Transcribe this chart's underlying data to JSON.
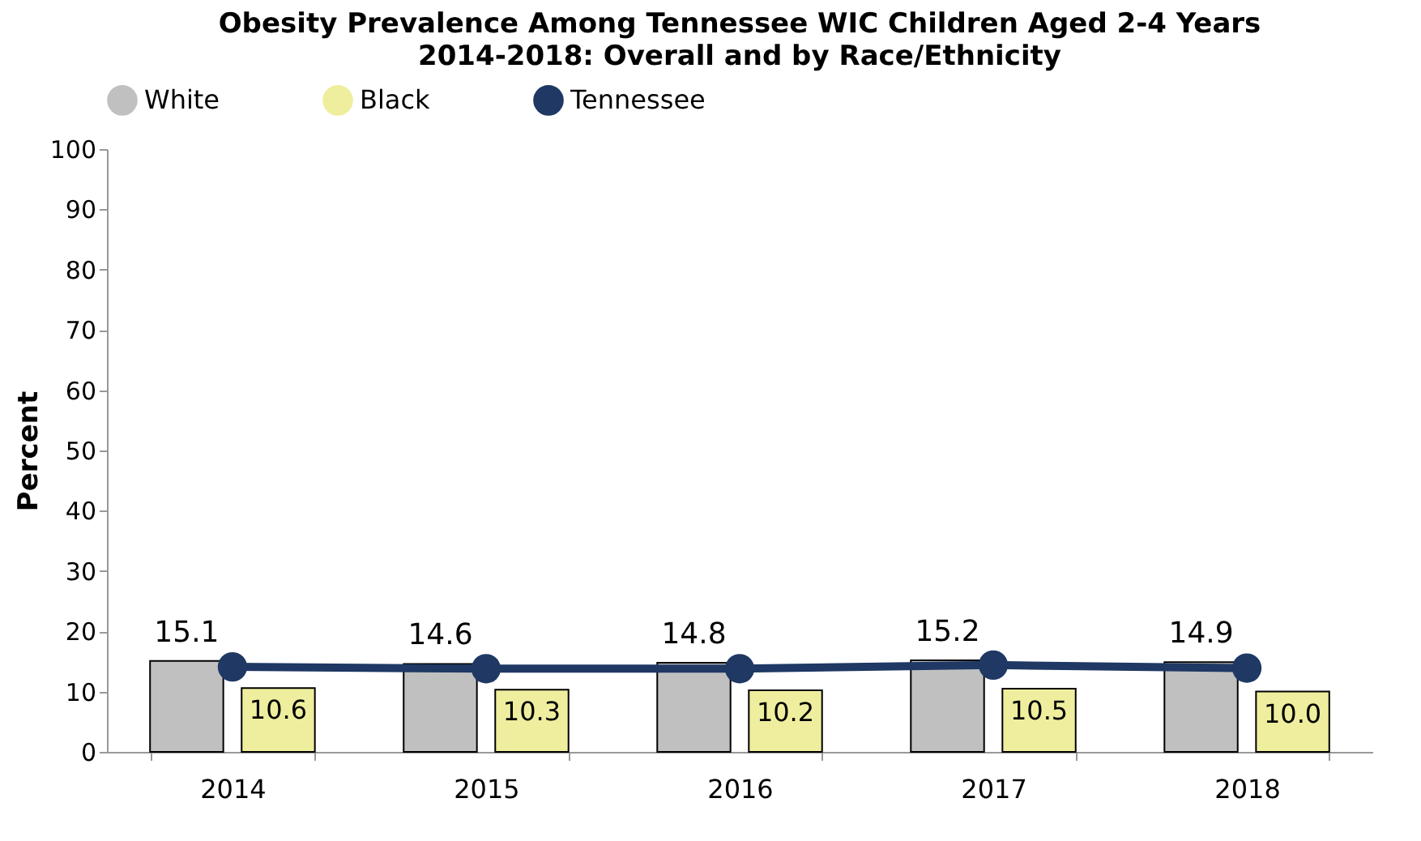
{
  "chart_data": {
    "type": "bar",
    "title": "Obesity Prevalence Among Tennessee WIC Children Aged 2-4 Years",
    "subtitle": "2014-2018: Overall and by Race/Ethnicity",
    "ylabel": "Percent",
    "categories": [
      "2014",
      "2015",
      "2016",
      "2017",
      "2018"
    ],
    "series": [
      {
        "name": "White",
        "color": "#c0c0c0",
        "values": [
          15.1,
          14.6,
          14.8,
          15.2,
          14.9
        ],
        "value_labels": [
          "15.1",
          "14.6",
          "14.8",
          "15.2",
          "14.9"
        ]
      },
      {
        "name": "Black",
        "color": "#eeee9e",
        "values": [
          10.6,
          10.3,
          10.2,
          10.5,
          10.0
        ],
        "value_labels": [
          "10.6",
          "10.3",
          "10.2",
          "10.5",
          "10.0"
        ]
      },
      {
        "name": "Tennessee",
        "type": "line",
        "color": "#1f3864",
        "values": [
          14.1,
          13.8,
          13.8,
          14.4,
          13.9
        ]
      }
    ],
    "ylim": [
      0,
      100
    ],
    "yticks": [
      0,
      10,
      20,
      30,
      40,
      50,
      60,
      70,
      80,
      90,
      100
    ],
    "grid": false,
    "legend": "top",
    "marker": "circle"
  }
}
